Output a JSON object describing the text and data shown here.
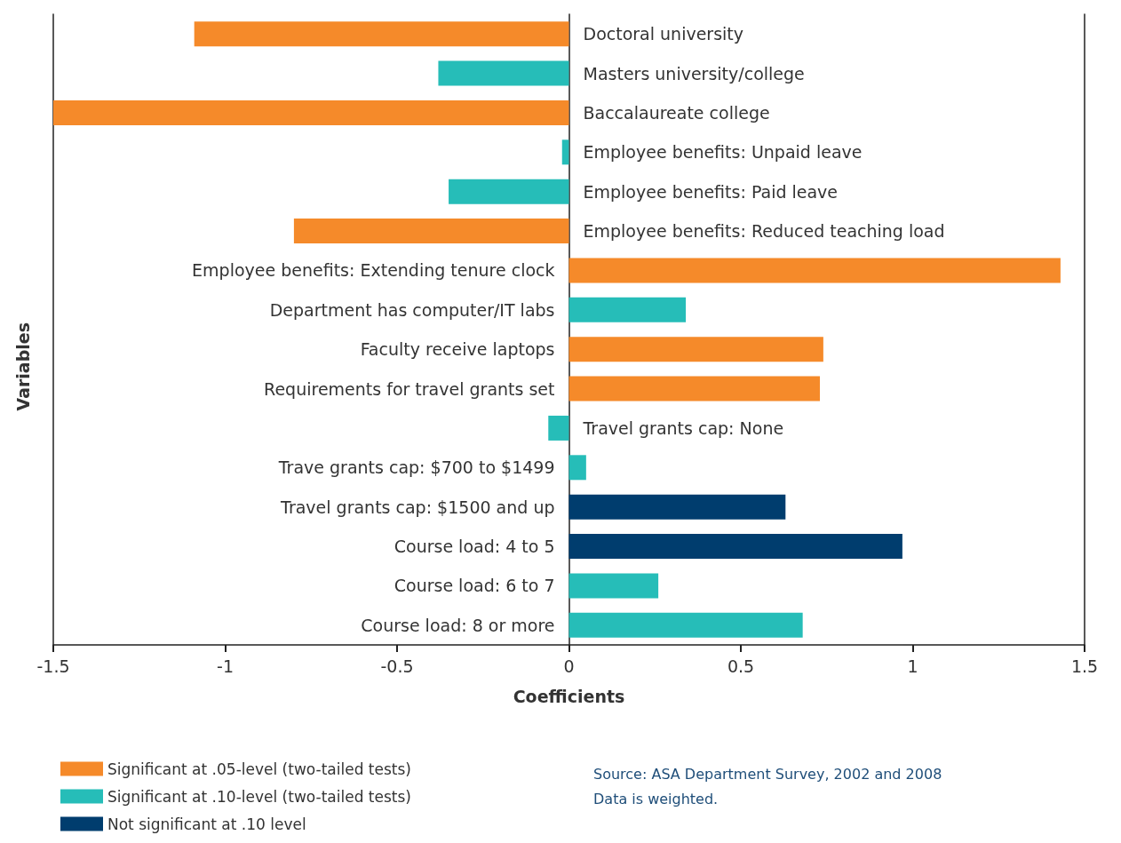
{
  "chart_data": {
    "type": "bar",
    "orientation": "horizontal",
    "stacked": true,
    "xlabel": "Coefficients",
    "ylabel": "Variables",
    "categories": [
      "Doctoral university",
      "Masters university/college",
      "Baccalaureate college",
      "Employee benefits: Unpaid leave",
      "Employee benefits: Paid leave",
      "Employee benefits: Reduced teaching load",
      "Employee benefits: Extending tenure clock",
      "Department has computer/IT labs",
      "Faculty receive laptops",
      "Requirements for travel grants set",
      "Travel grants cap: None",
      "Trave grants cap: $700 to $1499",
      "Travel grants cap: $1500 and up",
      "Course load: 4 to 5",
      "Course load: 6 to 7",
      "Course load: 8 or more"
    ],
    "series": [
      {
        "name": "Significant at .05-level (two-tailed tests)",
        "color": "#f58a2a",
        "values": [
          -1.09,
          null,
          -1.5,
          null,
          null,
          -0.8,
          1.43,
          null,
          0.74,
          0.73,
          null,
          null,
          null,
          null,
          null,
          null
        ]
      },
      {
        "name": "Significant at .10-level (two-tailed tests)",
        "color": "#26bdb8",
        "values": [
          null,
          -0.38,
          null,
          -0.02,
          -0.35,
          null,
          null,
          0.34,
          null,
          null,
          -0.06,
          0.05,
          null,
          null,
          0.26,
          0.68
        ]
      },
      {
        "name": "Not significant at .10 level",
        "color": "#003d6e",
        "values": [
          null,
          null,
          null,
          null,
          null,
          null,
          null,
          null,
          null,
          null,
          null,
          null,
          0.63,
          0.97,
          null,
          null
        ]
      }
    ],
    "xlim": [
      -1.5,
      1.5
    ],
    "xticks": [
      -1.5,
      -1,
      -0.5,
      0,
      0.5,
      1,
      1.5
    ],
    "grid": false,
    "legend": "bottom left",
    "annotations": [
      "Source: ASA Department Survey, 2002 and 2008",
      "Data is weighted."
    ]
  }
}
